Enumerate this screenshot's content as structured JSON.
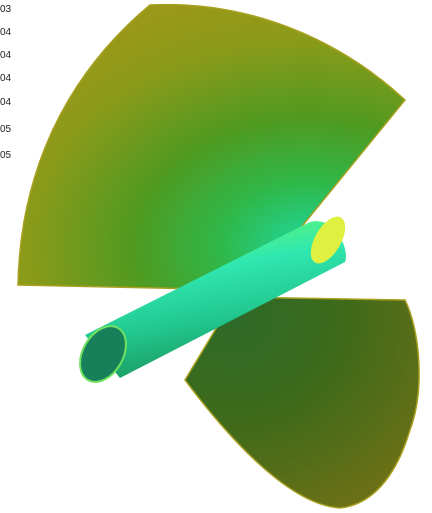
{
  "legend": {
    "labels": [
      "03",
      "04",
      "04",
      "04",
      "04",
      "05",
      "05"
    ]
  }
}
